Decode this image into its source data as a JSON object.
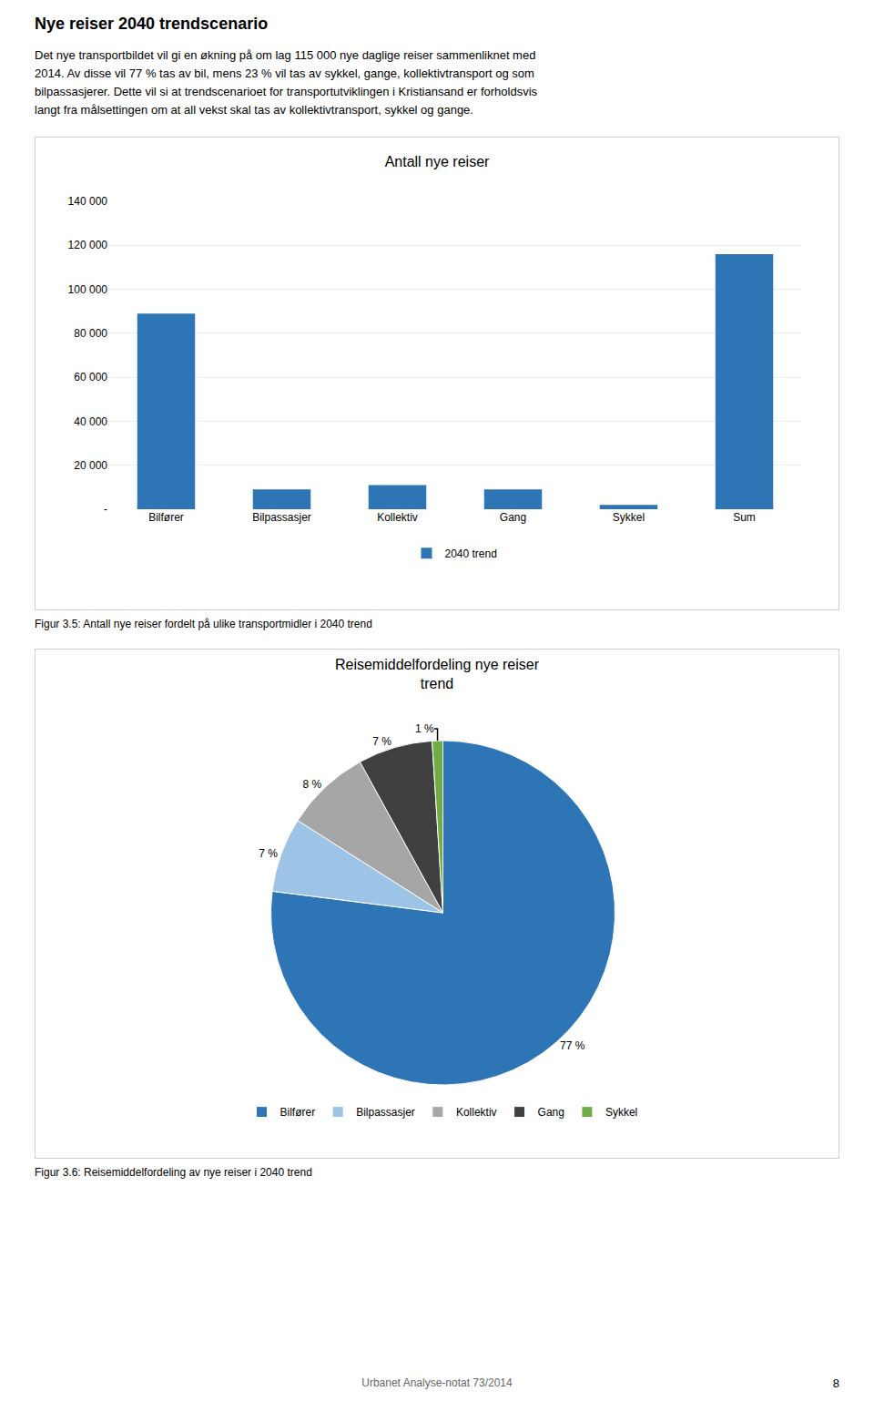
{
  "page_title": "Nye reiser 2040 trendscenario",
  "page_text": [
    "Det nye transportbildet vil gi en økning på om lag 115 000 nye daglige reiser sammenliknet med",
    "2014. Av disse vil 77 % tas av bil, mens 23 % vil tas av sykkel, gange, kollektivtransport og som",
    "bilpassasjerer. Dette vil si at trendscenarioet for transportutviklingen i Kristiansand er forholdsvis",
    "langt fra målsettingen om at all vekst skal tas av kollektivtransport, sykkel og gange."
  ],
  "footer": "Urbanet Analyse-notat 73/2014",
  "page_number": "8",
  "chart_data": [
    {
      "type": "bar",
      "title": "Antall nye reiser",
      "categories": [
        "Bilfører",
        "Bilpassasjer",
        "Kollektiv",
        "Gang",
        "Sykkel",
        "Sum"
      ],
      "series": [
        {
          "name": "2040 trend",
          "color": "#2E75B6",
          "values": [
            89000,
            9000,
            11000,
            9000,
            2000,
            116000
          ]
        }
      ],
      "ylim": [
        0,
        140000
      ],
      "yticks": [
        {
          "value": 0,
          "label": "-"
        },
        {
          "value": 20000,
          "label": "20 000"
        },
        {
          "value": 40000,
          "label": "40 000"
        },
        {
          "value": 60000,
          "label": "60 000"
        },
        {
          "value": 80000,
          "label": "80 000"
        },
        {
          "value": 100000,
          "label": "100 000"
        },
        {
          "value": 120000,
          "label": "120 000"
        },
        {
          "value": 140000,
          "label": "140 000"
        }
      ],
      "grid": true,
      "legend": "bottom",
      "annotations": [
        "Figur 3.5: Antall nye reiser fordelt på ulike transportmidler i 2040 trend"
      ]
    },
    {
      "type": "pie",
      "title": "Reisemiddelfordeling nye reiser\ntrend",
      "categories": [
        "Bilfører",
        "Bilpassasjer",
        "Kollektiv",
        "Gang",
        "Sykkel"
      ],
      "values": [
        77,
        7,
        8,
        7,
        1
      ],
      "value_labels": [
        "77 %",
        "7 %",
        "8 %",
        "7 %",
        "1 %"
      ],
      "colors": [
        "#2E75B6",
        "#9DC3E6",
        "#A6A6A6",
        "#404040",
        "#70AD47"
      ],
      "data_labels": true,
      "legend": "bottom",
      "annotations": [
        "Figur 3.6: Reisemiddelfordeling av nye reiser i 2040 trend"
      ]
    }
  ]
}
